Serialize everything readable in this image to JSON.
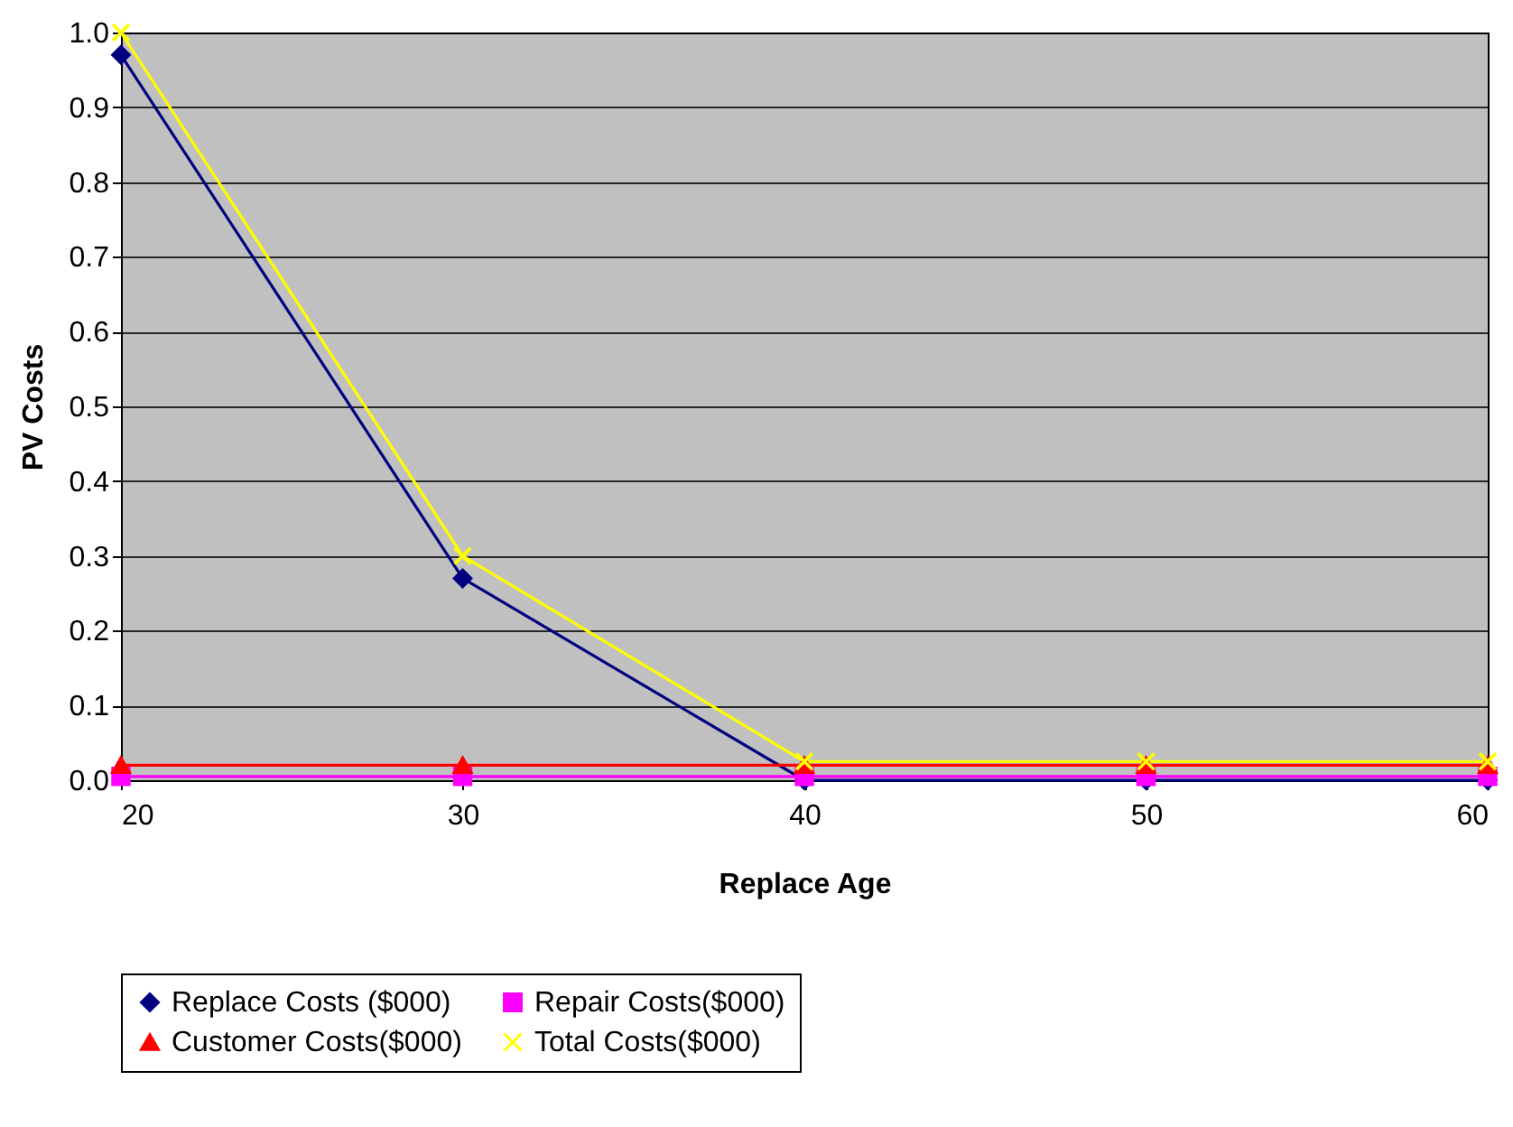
{
  "chart_data": {
    "type": "line",
    "xlabel": "Replace Age",
    "ylabel": "PV Costs",
    "x": [
      20,
      30,
      40,
      50,
      60
    ],
    "series": [
      {
        "name": "Replace Costs ($000)",
        "color": "#000080",
        "marker": "diamond",
        "values": [
          0.97,
          0.27,
          0,
          0,
          0
        ]
      },
      {
        "name": "Repair Costs($000)",
        "color": "#ff00ff",
        "marker": "square",
        "values": [
          0.005,
          0.005,
          0.005,
          0.005,
          0.005
        ]
      },
      {
        "name": "Customer Costs($000)",
        "color": "#ff0000",
        "marker": "triangle",
        "values": [
          0.02,
          0.02,
          0.02,
          0.02,
          0.02
        ]
      },
      {
        "name": "Total Costs($000)",
        "color": "#ffff00",
        "marker": "cross",
        "values": [
          1.0,
          0.3,
          0.025,
          0.025,
          0.025
        ]
      }
    ],
    "xlim": [
      20,
      60
    ],
    "xticks": [
      20,
      30,
      40,
      50,
      60
    ],
    "ylim": [
      0,
      1
    ],
    "yticks": [
      {
        "value": 0,
        "label": "0.0"
      },
      0.1,
      0.2,
      0.3,
      0.4,
      0.5,
      0.6,
      0.7,
      0.8,
      0.9,
      {
        "value": 1,
        "label": "1.0"
      }
    ],
    "grid": "y",
    "legend": "bottom"
  }
}
